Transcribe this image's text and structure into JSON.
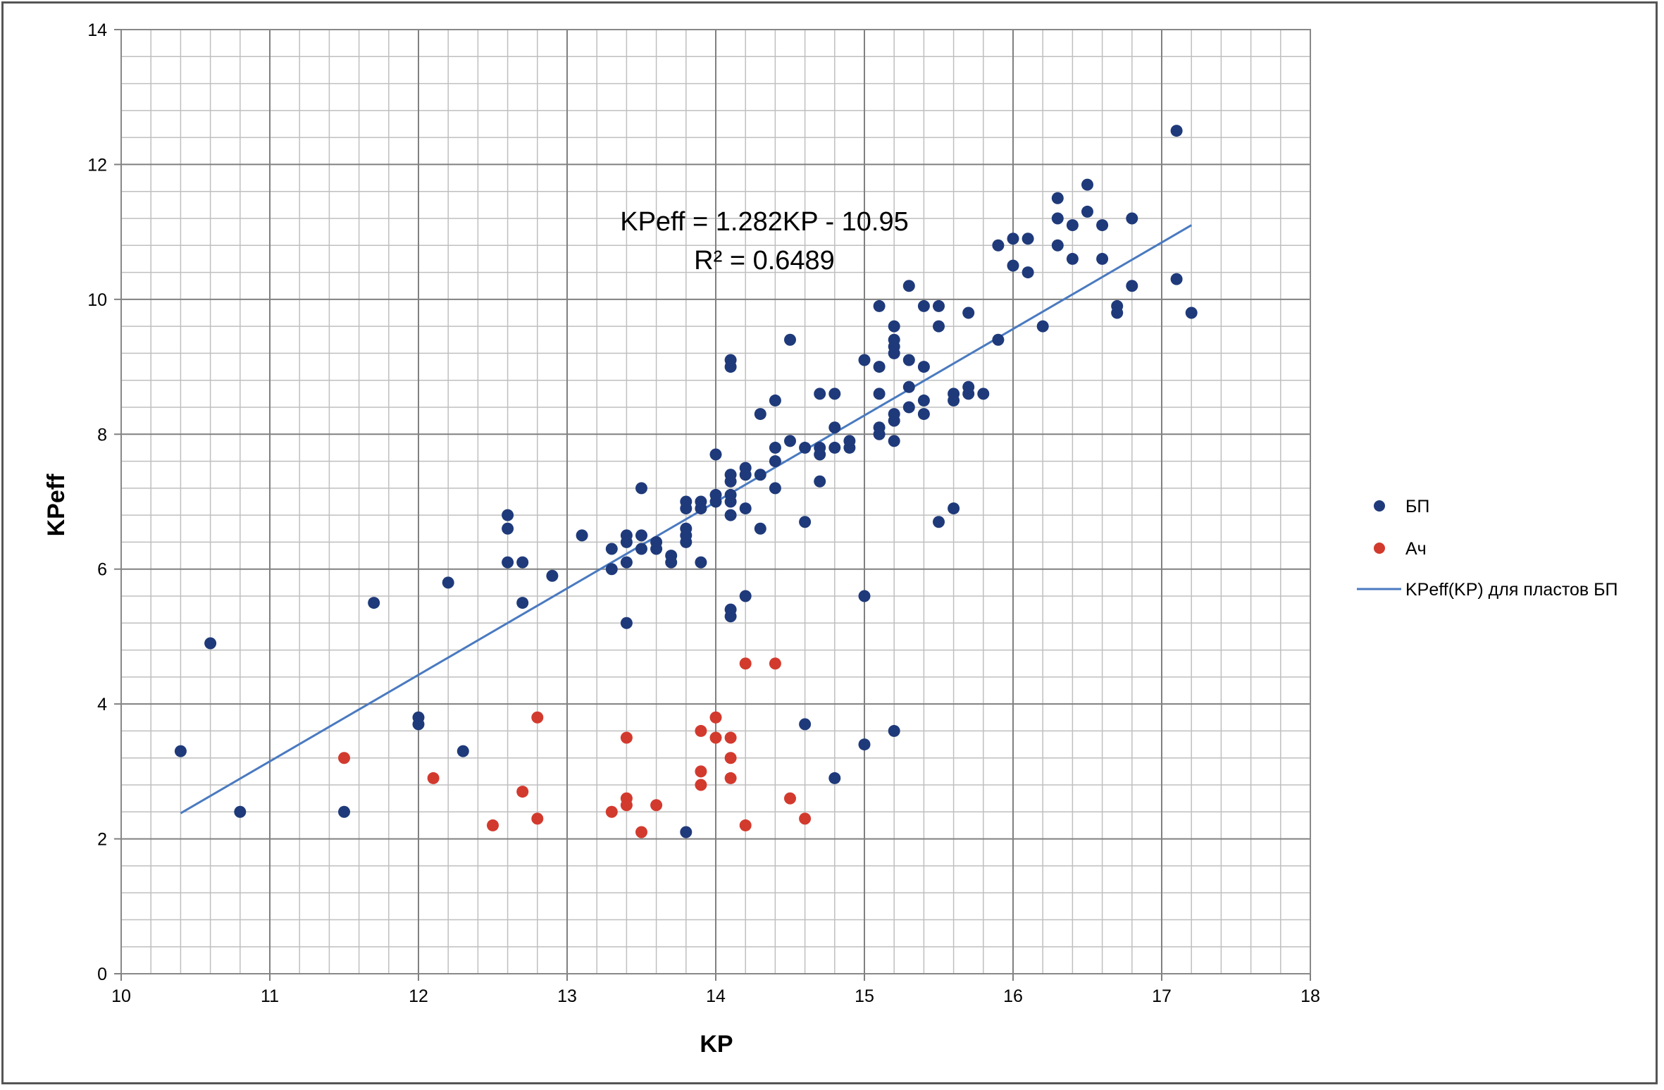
{
  "chart_data": {
    "type": "scatter",
    "xlabel": "KP",
    "ylabel": "KPeff",
    "xlim": [
      10,
      18
    ],
    "ylim": [
      0,
      14
    ],
    "x_major_step": 1,
    "y_major_step": 2,
    "x_minor_step": 0.2,
    "y_minor_step": 0.4,
    "grid": true,
    "legend_position": "right",
    "x_ticks": [
      "10",
      "11",
      "12",
      "13",
      "14",
      "15",
      "16",
      "17",
      "18"
    ],
    "y_ticks": [
      "0",
      "2",
      "4",
      "6",
      "8",
      "10",
      "12",
      "14"
    ],
    "series": [
      {
        "name": "БП",
        "type": "scatter",
        "color": "#1f3a7a",
        "points": [
          [
            10.4,
            3.3
          ],
          [
            10.6,
            4.9
          ],
          [
            10.8,
            2.4
          ],
          [
            11.5,
            2.4
          ],
          [
            11.7,
            5.5
          ],
          [
            12.0,
            3.8
          ],
          [
            12.0,
            3.7
          ],
          [
            12.2,
            5.8
          ],
          [
            12.3,
            3.3
          ],
          [
            12.6,
            6.8
          ],
          [
            12.6,
            6.6
          ],
          [
            12.6,
            6.1
          ],
          [
            12.7,
            6.1
          ],
          [
            12.7,
            5.5
          ],
          [
            12.9,
            5.9
          ],
          [
            13.1,
            6.5
          ],
          [
            13.3,
            6.3
          ],
          [
            13.3,
            6.0
          ],
          [
            13.4,
            6.5
          ],
          [
            13.4,
            6.4
          ],
          [
            13.4,
            6.1
          ],
          [
            13.4,
            5.2
          ],
          [
            13.5,
            7.2
          ],
          [
            13.5,
            6.5
          ],
          [
            13.5,
            6.3
          ],
          [
            13.6,
            6.4
          ],
          [
            13.6,
            6.3
          ],
          [
            13.7,
            6.2
          ],
          [
            13.7,
            6.1
          ],
          [
            13.8,
            7.0
          ],
          [
            13.8,
            6.9
          ],
          [
            13.8,
            6.6
          ],
          [
            13.8,
            6.5
          ],
          [
            13.8,
            6.4
          ],
          [
            13.8,
            2.1
          ],
          [
            13.9,
            7.0
          ],
          [
            13.9,
            6.9
          ],
          [
            13.9,
            6.1
          ],
          [
            14.0,
            7.7
          ],
          [
            14.0,
            7.1
          ],
          [
            14.0,
            7.0
          ],
          [
            14.1,
            9.1
          ],
          [
            14.1,
            9.0
          ],
          [
            14.1,
            7.4
          ],
          [
            14.1,
            7.3
          ],
          [
            14.1,
            7.1
          ],
          [
            14.1,
            7.0
          ],
          [
            14.1,
            6.8
          ],
          [
            14.1,
            5.4
          ],
          [
            14.1,
            5.3
          ],
          [
            14.2,
            7.5
          ],
          [
            14.2,
            7.4
          ],
          [
            14.2,
            6.9
          ],
          [
            14.2,
            5.6
          ],
          [
            14.3,
            8.3
          ],
          [
            14.3,
            7.4
          ],
          [
            14.3,
            6.6
          ],
          [
            14.4,
            8.5
          ],
          [
            14.4,
            7.8
          ],
          [
            14.4,
            7.6
          ],
          [
            14.4,
            7.2
          ],
          [
            14.5,
            9.4
          ],
          [
            14.5,
            7.9
          ],
          [
            14.6,
            7.8
          ],
          [
            14.6,
            6.7
          ],
          [
            14.6,
            3.7
          ],
          [
            14.7,
            8.6
          ],
          [
            14.7,
            7.8
          ],
          [
            14.7,
            7.7
          ],
          [
            14.7,
            7.3
          ],
          [
            14.8,
            8.6
          ],
          [
            14.8,
            8.1
          ],
          [
            14.8,
            7.8
          ],
          [
            14.8,
            2.9
          ],
          [
            14.9,
            7.9
          ],
          [
            14.9,
            7.8
          ],
          [
            15.0,
            9.1
          ],
          [
            15.0,
            5.6
          ],
          [
            15.0,
            3.4
          ],
          [
            15.1,
            9.9
          ],
          [
            15.1,
            9.0
          ],
          [
            15.1,
            8.6
          ],
          [
            15.1,
            8.1
          ],
          [
            15.1,
            8.0
          ],
          [
            15.2,
            9.6
          ],
          [
            15.2,
            9.4
          ],
          [
            15.2,
            9.3
          ],
          [
            15.2,
            9.2
          ],
          [
            15.2,
            8.3
          ],
          [
            15.2,
            8.2
          ],
          [
            15.2,
            7.9
          ],
          [
            15.2,
            3.6
          ],
          [
            15.3,
            10.2
          ],
          [
            15.3,
            9.1
          ],
          [
            15.3,
            8.7
          ],
          [
            15.3,
            8.4
          ],
          [
            15.4,
            9.9
          ],
          [
            15.4,
            9.0
          ],
          [
            15.4,
            8.5
          ],
          [
            15.4,
            8.3
          ],
          [
            15.5,
            9.9
          ],
          [
            15.5,
            9.6
          ],
          [
            15.5,
            6.7
          ],
          [
            15.6,
            8.6
          ],
          [
            15.6,
            8.5
          ],
          [
            15.6,
            6.9
          ],
          [
            15.7,
            9.8
          ],
          [
            15.7,
            8.7
          ],
          [
            15.7,
            8.6
          ],
          [
            15.8,
            8.6
          ],
          [
            15.9,
            10.8
          ],
          [
            15.9,
            9.4
          ],
          [
            16.0,
            10.9
          ],
          [
            16.0,
            10.5
          ],
          [
            16.1,
            10.9
          ],
          [
            16.1,
            10.4
          ],
          [
            16.2,
            9.6
          ],
          [
            16.3,
            11.5
          ],
          [
            16.3,
            11.2
          ],
          [
            16.3,
            10.8
          ],
          [
            16.4,
            11.1
          ],
          [
            16.4,
            10.6
          ],
          [
            16.5,
            11.7
          ],
          [
            16.5,
            11.3
          ],
          [
            16.6,
            11.1
          ],
          [
            16.6,
            10.6
          ],
          [
            16.7,
            9.9
          ],
          [
            16.7,
            9.8
          ],
          [
            16.8,
            11.2
          ],
          [
            16.8,
            10.2
          ],
          [
            17.1,
            12.5
          ],
          [
            17.1,
            10.3
          ],
          [
            17.2,
            9.8
          ]
        ]
      },
      {
        "name": "Ач",
        "type": "scatter",
        "color": "#d23a2e",
        "points": [
          [
            11.5,
            3.2
          ],
          [
            12.1,
            2.9
          ],
          [
            12.5,
            2.2
          ],
          [
            12.7,
            2.7
          ],
          [
            12.8,
            3.8
          ],
          [
            12.8,
            2.3
          ],
          [
            13.3,
            2.4
          ],
          [
            13.4,
            3.5
          ],
          [
            13.4,
            2.6
          ],
          [
            13.4,
            2.5
          ],
          [
            13.5,
            2.1
          ],
          [
            13.6,
            2.5
          ],
          [
            13.9,
            3.6
          ],
          [
            13.9,
            3.0
          ],
          [
            13.9,
            2.8
          ],
          [
            14.0,
            3.8
          ],
          [
            14.0,
            3.5
          ],
          [
            14.1,
            3.5
          ],
          [
            14.1,
            3.2
          ],
          [
            14.1,
            2.9
          ],
          [
            14.2,
            4.6
          ],
          [
            14.2,
            2.2
          ],
          [
            14.4,
            4.6
          ],
          [
            14.5,
            2.6
          ],
          [
            14.6,
            2.3
          ]
        ]
      },
      {
        "name": "KPeff(KP) для пластов БП",
        "type": "line",
        "color": "#4a7ac0",
        "points": [
          [
            10.4,
            2.38
          ],
          [
            17.2,
            11.1
          ]
        ]
      }
    ],
    "annotations": {
      "equation": "KPeff = 1.282KP - 10.95",
      "r_squared": "R² = 0.6489"
    }
  }
}
